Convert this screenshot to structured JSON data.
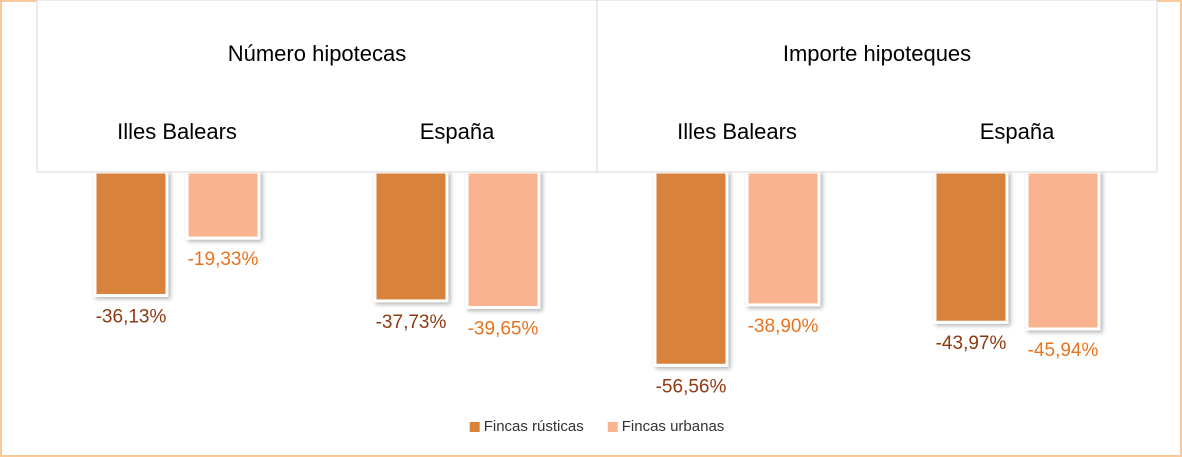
{
  "chart_data": {
    "type": "bar",
    "category_groups": [
      "Número hipotecas",
      "Importe hipoteques"
    ],
    "categories": [
      "Illes Balears",
      "España",
      "Illes Balears",
      "España"
    ],
    "series": [
      {
        "name": "Fincas rústicas",
        "color": "#d9823b",
        "label_color": "#8b3a12",
        "values": [
          -36.13,
          -37.73,
          -56.56,
          -43.97
        ],
        "value_labels": [
          "-36,13%",
          "-37,73%",
          "-56,56%",
          "-43,97%"
        ]
      },
      {
        "name": "Fincas urbanas",
        "color": "#f9b38f",
        "label_color": "#e8731f",
        "values": [
          -19.33,
          -39.65,
          -38.9,
          -45.94
        ],
        "value_labels": [
          "-19,33%",
          "-39,65%",
          "-38,90%",
          "-45,94%"
        ]
      }
    ],
    "ylim": [
      -60,
      0
    ]
  }
}
